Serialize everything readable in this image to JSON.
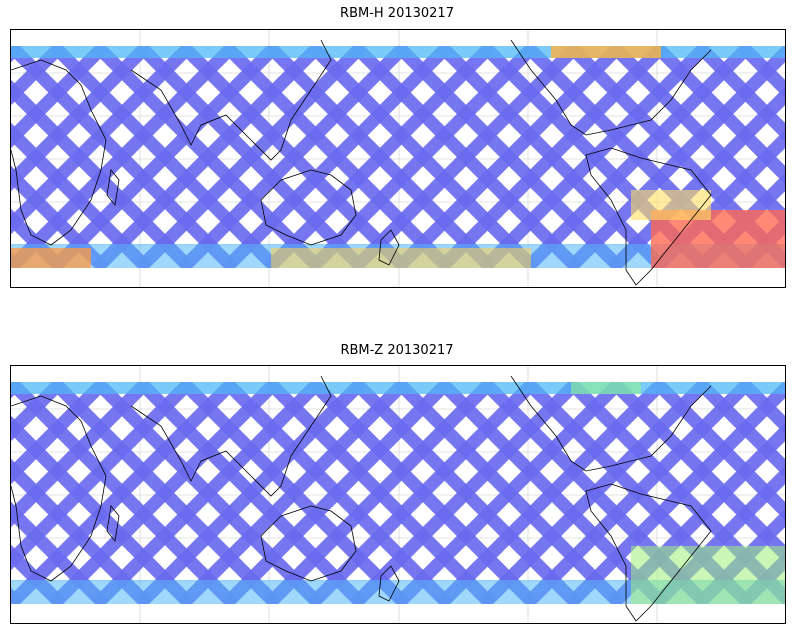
{
  "panels": [
    {
      "title": "RBM-H 20130217",
      "colormap": "jet",
      "hotspots": "high"
    },
    {
      "title": "RBM-Z 20130217",
      "colormap": "jet",
      "hotspots": "low"
    }
  ],
  "map": {
    "projection": "plate-carree",
    "central_longitude": 180,
    "grid": true,
    "coastlines": true,
    "swath_color": "#6a6af0",
    "swath_color_edge": "#50b8f5"
  }
}
